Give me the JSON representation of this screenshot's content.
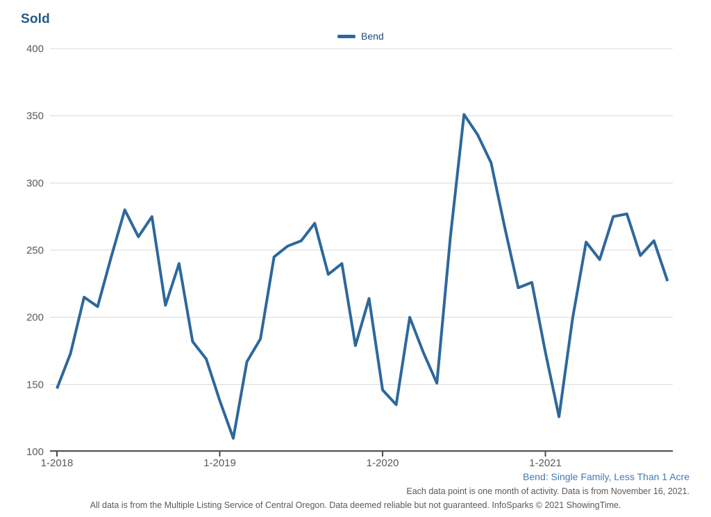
{
  "title": "Sold",
  "legend": {
    "series_label": "Bend"
  },
  "footnotes": {
    "series_description": "Bend: Single Family, Less Than 1 Acre",
    "data_info": "Each data point is one month of activity. Data is from November 16, 2021.",
    "disclaimer": "All data is from the Multiple Listing Service of Central Oregon. Data deemed reliable but not guaranteed. InfoSparks © 2021 ShowingTime."
  },
  "colors": {
    "line": "#2d689c",
    "title_blue": "#1f5a8c",
    "legend_text": "#1d4a74",
    "footnote_blue": "#3e7bb8",
    "text_gray": "#595959",
    "gridline": "#d9d9d9",
    "axis": "#4a4a4a"
  },
  "chart_data": {
    "type": "line",
    "title": "Sold",
    "xlabel": "",
    "ylabel": "Sold",
    "ylim": [
      100,
      400
    ],
    "y_ticks": [
      400,
      350,
      300,
      250,
      200,
      150,
      100
    ],
    "grid": true,
    "legend_position": "top-center",
    "x_tick_labels": [
      "1-2018",
      "1-2019",
      "1-2020",
      "1-2021"
    ],
    "x_tick_month_indices": [
      0,
      12,
      24,
      36
    ],
    "x": [
      "1-2018",
      "2-2018",
      "3-2018",
      "4-2018",
      "5-2018",
      "6-2018",
      "7-2018",
      "8-2018",
      "9-2018",
      "10-2018",
      "11-2018",
      "12-2018",
      "1-2019",
      "2-2019",
      "3-2019",
      "4-2019",
      "5-2019",
      "6-2019",
      "7-2019",
      "8-2019",
      "9-2019",
      "10-2019",
      "11-2019",
      "12-2019",
      "1-2020",
      "2-2020",
      "3-2020",
      "4-2020",
      "5-2020",
      "6-2020",
      "7-2020",
      "8-2020",
      "9-2020",
      "10-2020",
      "11-2020",
      "12-2020",
      "1-2021",
      "2-2021",
      "3-2021",
      "4-2021",
      "5-2021",
      "6-2021",
      "7-2021",
      "8-2021",
      "9-2021",
      "10-2021"
    ],
    "series": [
      {
        "name": "Bend",
        "values": [
          147,
          173,
          215,
          208,
          245,
          280,
          260,
          275,
          209,
          240,
          182,
          169,
          138,
          110,
          167,
          184,
          245,
          253,
          257,
          270,
          232,
          240,
          179,
          214,
          146,
          135,
          200,
          174,
          151,
          260,
          351,
          336,
          315,
          267,
          222,
          226,
          174,
          126,
          199,
          256,
          243,
          275,
          277,
          246,
          257,
          227
        ]
      }
    ]
  }
}
